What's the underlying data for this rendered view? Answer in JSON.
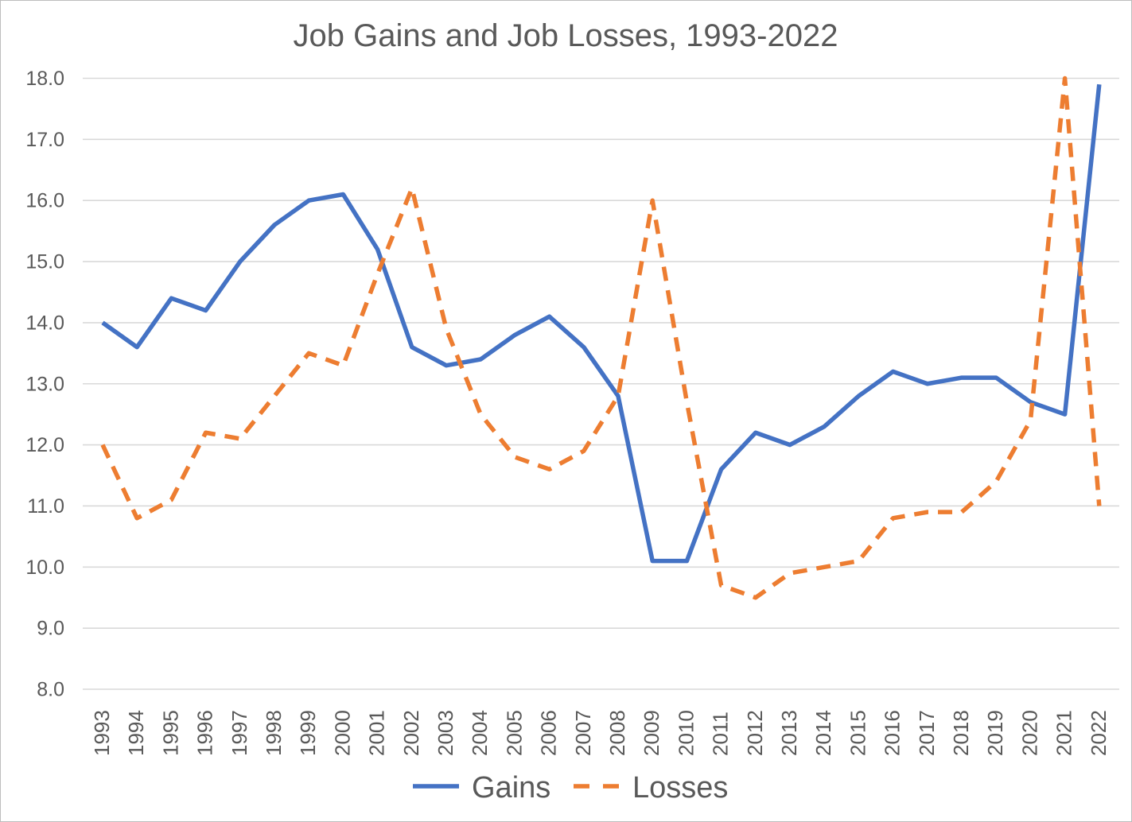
{
  "chart_data": {
    "type": "line",
    "title": "Job Gains and Job Losses, 1993-2022",
    "categories": [
      "1993",
      "1994",
      "1995",
      "1996",
      "1997",
      "1998",
      "1999",
      "2000",
      "2001",
      "2002",
      "2003",
      "2004",
      "2005",
      "2006",
      "2007",
      "2008",
      "2009",
      "2010",
      "2011",
      "2012",
      "2013",
      "2014",
      "2015",
      "2016",
      "2017",
      "2018",
      "2019",
      "2020",
      "2021",
      "2022"
    ],
    "series": [
      {
        "name": "Gains",
        "style": "solid",
        "color": "#4472C4",
        "values": [
          14.0,
          13.6,
          14.4,
          14.2,
          15.0,
          15.6,
          16.0,
          16.1,
          15.2,
          13.6,
          13.3,
          13.4,
          13.8,
          14.1,
          13.6,
          12.8,
          10.1,
          10.1,
          11.6,
          12.2,
          12.0,
          12.3,
          12.8,
          13.2,
          13.0,
          13.1,
          13.1,
          12.7,
          12.5,
          17.9
        ]
      },
      {
        "name": "Losses",
        "style": "dashed",
        "color": "#ED7D31",
        "values": [
          12.0,
          10.8,
          11.1,
          12.2,
          12.1,
          12.8,
          13.5,
          13.3,
          14.8,
          16.2,
          13.9,
          12.5,
          11.8,
          11.6,
          11.9,
          12.8,
          16.0,
          12.7,
          9.7,
          9.5,
          9.9,
          10.0,
          10.1,
          10.8,
          10.9,
          10.9,
          11.4,
          12.4,
          18.0,
          11.0
        ]
      }
    ],
    "ylim": [
      8.0,
      18.0
    ],
    "ytick_labels": [
      "18.0",
      "17.0",
      "16.0",
      "15.0",
      "14.0",
      "13.0",
      "12.0",
      "11.0",
      "10.0",
      "9.0",
      "8.0"
    ],
    "grid": true,
    "legend_position": "bottom",
    "gridline_color": "#D9D9D9",
    "text_color": "#595959"
  }
}
